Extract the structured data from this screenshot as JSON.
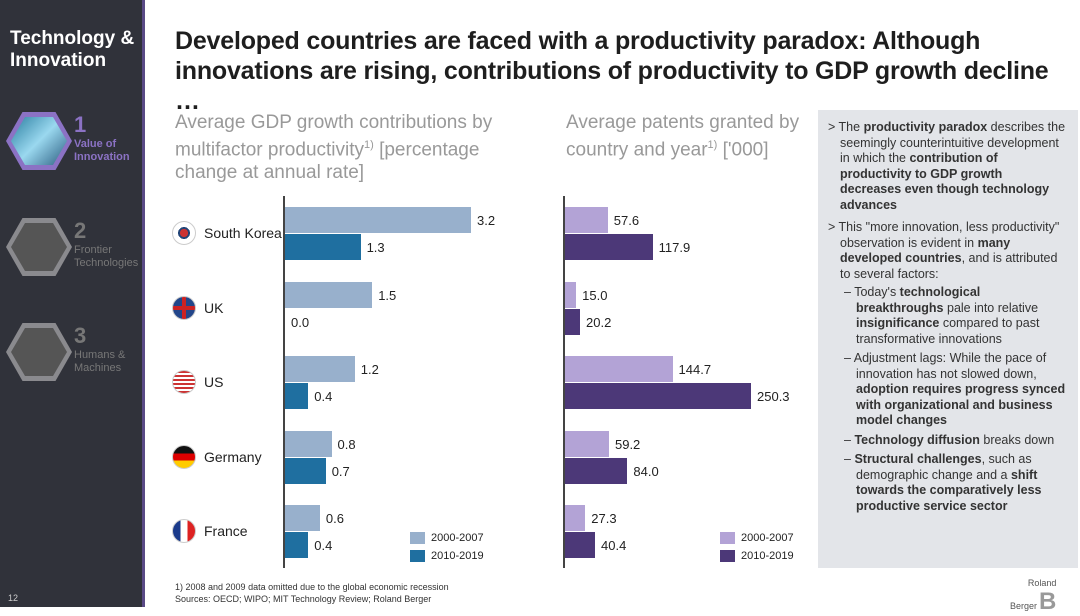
{
  "sidebar": {
    "title": "Technology & Innovation",
    "items": [
      {
        "num": "1",
        "label": "Value of Innovation"
      },
      {
        "num": "2",
        "label": "Frontier Technologies"
      },
      {
        "num": "3",
        "label": "Humans & Machines"
      }
    ],
    "page": "12"
  },
  "title": "Developed countries are faced with a productivity paradox: Although innovations are rising, contributions of productivity to GDP growth decline …",
  "colors": {
    "gdp_2000": "#98b0cc",
    "gdp_2010": "#1f6fa0",
    "pat_2000": "#b3a3d6",
    "pat_2010": "#4c3878"
  },
  "chart_data": [
    {
      "type": "bar",
      "title": "Average GDP growth contributions by multifactor productivity",
      "title_sup": "1)",
      "subtitle": "[percentage change at annual rate]",
      "categories": [
        "South Korea",
        "UK",
        "US",
        "Germany",
        "France"
      ],
      "series": [
        {
          "name": "2000-2007",
          "values": [
            3.2,
            1.5,
            1.2,
            0.8,
            0.6
          ],
          "labels": [
            "3.2",
            "1.5",
            "1.2",
            "0.8",
            "0.6"
          ]
        },
        {
          "name": "2010-2019",
          "values": [
            1.3,
            0.0,
            0.4,
            0.7,
            0.4
          ],
          "labels": [
            "1.3",
            "0.0",
            "0.4",
            "0.7",
            "0.4"
          ]
        }
      ],
      "xlim": [
        0,
        3.2
      ]
    },
    {
      "type": "bar",
      "title": "Average patents granted by country and year",
      "title_sup": "1)",
      "subtitle": "['000]",
      "categories": [
        "South Korea",
        "UK",
        "US",
        "Germany",
        "France"
      ],
      "series": [
        {
          "name": "2000-2007",
          "values": [
            57.6,
            15.0,
            144.7,
            59.2,
            27.3
          ],
          "labels": [
            "57.6",
            "15.0",
            "144.7",
            "59.2",
            "27.3"
          ]
        },
        {
          "name": "2010-2019",
          "values": [
            117.9,
            20.2,
            250.3,
            84.0,
            40.4
          ],
          "labels": [
            "117.9",
            "20.2",
            "250.3",
            "84.0",
            "40.4"
          ]
        }
      ],
      "xlim": [
        0,
        250.3
      ]
    }
  ],
  "footnote": "1) 2008 and 2009 data omitted due to the global economic recession",
  "sources": "Sources: OECD; WIPO; MIT Technology Review; Roland Berger",
  "logo": "Roland Berger"
}
